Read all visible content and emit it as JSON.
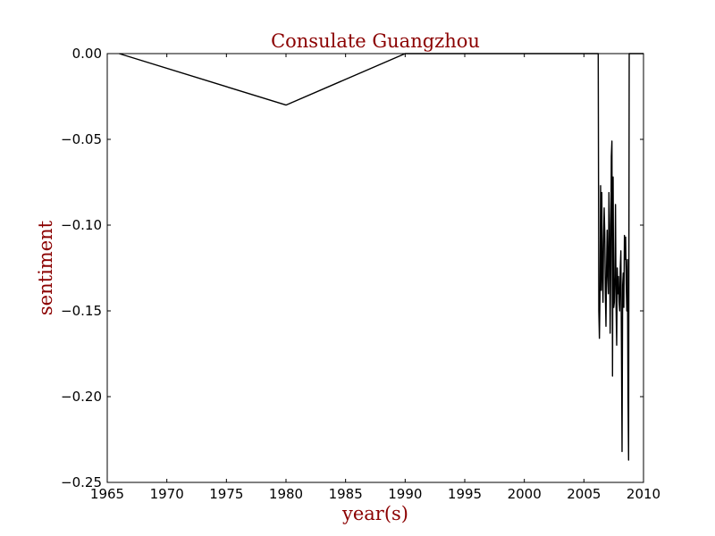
{
  "chart_data": {
    "type": "line",
    "title": "Consulate Guangzhou",
    "xlabel": "year(s)",
    "ylabel": "sentiment",
    "xlim": [
      1965,
      2010
    ],
    "ylim": [
      -0.25,
      0.0
    ],
    "grid": false,
    "legend": "none",
    "line_color": "#000000",
    "text_color": "#8b0000",
    "xticks": [
      1965,
      1970,
      1975,
      1980,
      1985,
      1990,
      1995,
      2000,
      2005,
      2010
    ],
    "xtick_labels": [
      "1965",
      "1970",
      "1975",
      "1980",
      "1985",
      "1990",
      "1995",
      "2000",
      "2005",
      "2010"
    ],
    "yticks": [
      0.0,
      -0.05,
      -0.1,
      -0.15,
      -0.2,
      -0.25
    ],
    "ytick_labels": [
      "0.00",
      "−0.05",
      "−0.10",
      "−0.15",
      "−0.20",
      "−0.25"
    ],
    "series": [
      {
        "x": [
          1966.0,
          1980.0,
          1990.0,
          2006.2,
          2006.25,
          2006.3,
          2006.35,
          2006.4,
          2006.45,
          2006.5,
          2006.55,
          2006.6,
          2006.65,
          2006.7,
          2006.75,
          2006.8,
          2006.85,
          2006.9,
          2006.95,
          2007.0,
          2007.05,
          2007.1,
          2007.15,
          2007.2,
          2007.25,
          2007.3,
          2007.35,
          2007.4,
          2007.45,
          2007.5,
          2007.55,
          2007.6,
          2007.65,
          2007.7,
          2007.75,
          2007.8,
          2007.85,
          2007.9,
          2007.95,
          2008.0,
          2008.05,
          2008.1,
          2008.15,
          2008.2,
          2008.25,
          2008.3,
          2008.35,
          2008.4,
          2008.45,
          2008.5,
          2008.55,
          2008.6,
          2008.65,
          2008.7,
          2008.75,
          2008.8,
          2008.9,
          2009.0,
          2009.1,
          2009.2,
          2009.3,
          2009.4,
          2009.45,
          2009.5,
          2009.55,
          2009.6,
          2009.65,
          2009.7,
          2009.75,
          2009.8,
          2009.85,
          2009.9,
          2009.95,
          2010.0
        ],
        "y": [
          0.0,
          -0.03,
          0.0,
          0.0,
          -0.15,
          -0.166,
          -0.14,
          -0.077,
          -0.138,
          -0.081,
          -0.128,
          -0.145,
          -0.11,
          -0.09,
          -0.105,
          -0.14,
          -0.159,
          -0.125,
          -0.103,
          -0.13,
          -0.14,
          -0.081,
          -0.1,
          -0.163,
          -0.125,
          -0.06,
          -0.051,
          -0.188,
          -0.072,
          -0.148,
          -0.145,
          -0.13,
          -0.088,
          -0.148,
          -0.17,
          -0.125,
          -0.14,
          -0.13,
          -0.145,
          -0.15,
          -0.125,
          -0.115,
          -0.17,
          -0.232,
          -0.135,
          -0.128,
          -0.148,
          -0.106,
          -0.12,
          -0.107,
          -0.135,
          -0.15,
          -0.12,
          -0.2,
          -0.237,
          -0.0,
          -0.0,
          -0.0,
          -0.0,
          -0.0,
          -0.0,
          -0.0,
          -0.0,
          -0.0,
          -0.0,
          -0.0,
          -0.0,
          -0.0,
          -0.0,
          -0.0,
          -0.0,
          -0.0,
          -0.0,
          0.0
        ]
      }
    ]
  }
}
